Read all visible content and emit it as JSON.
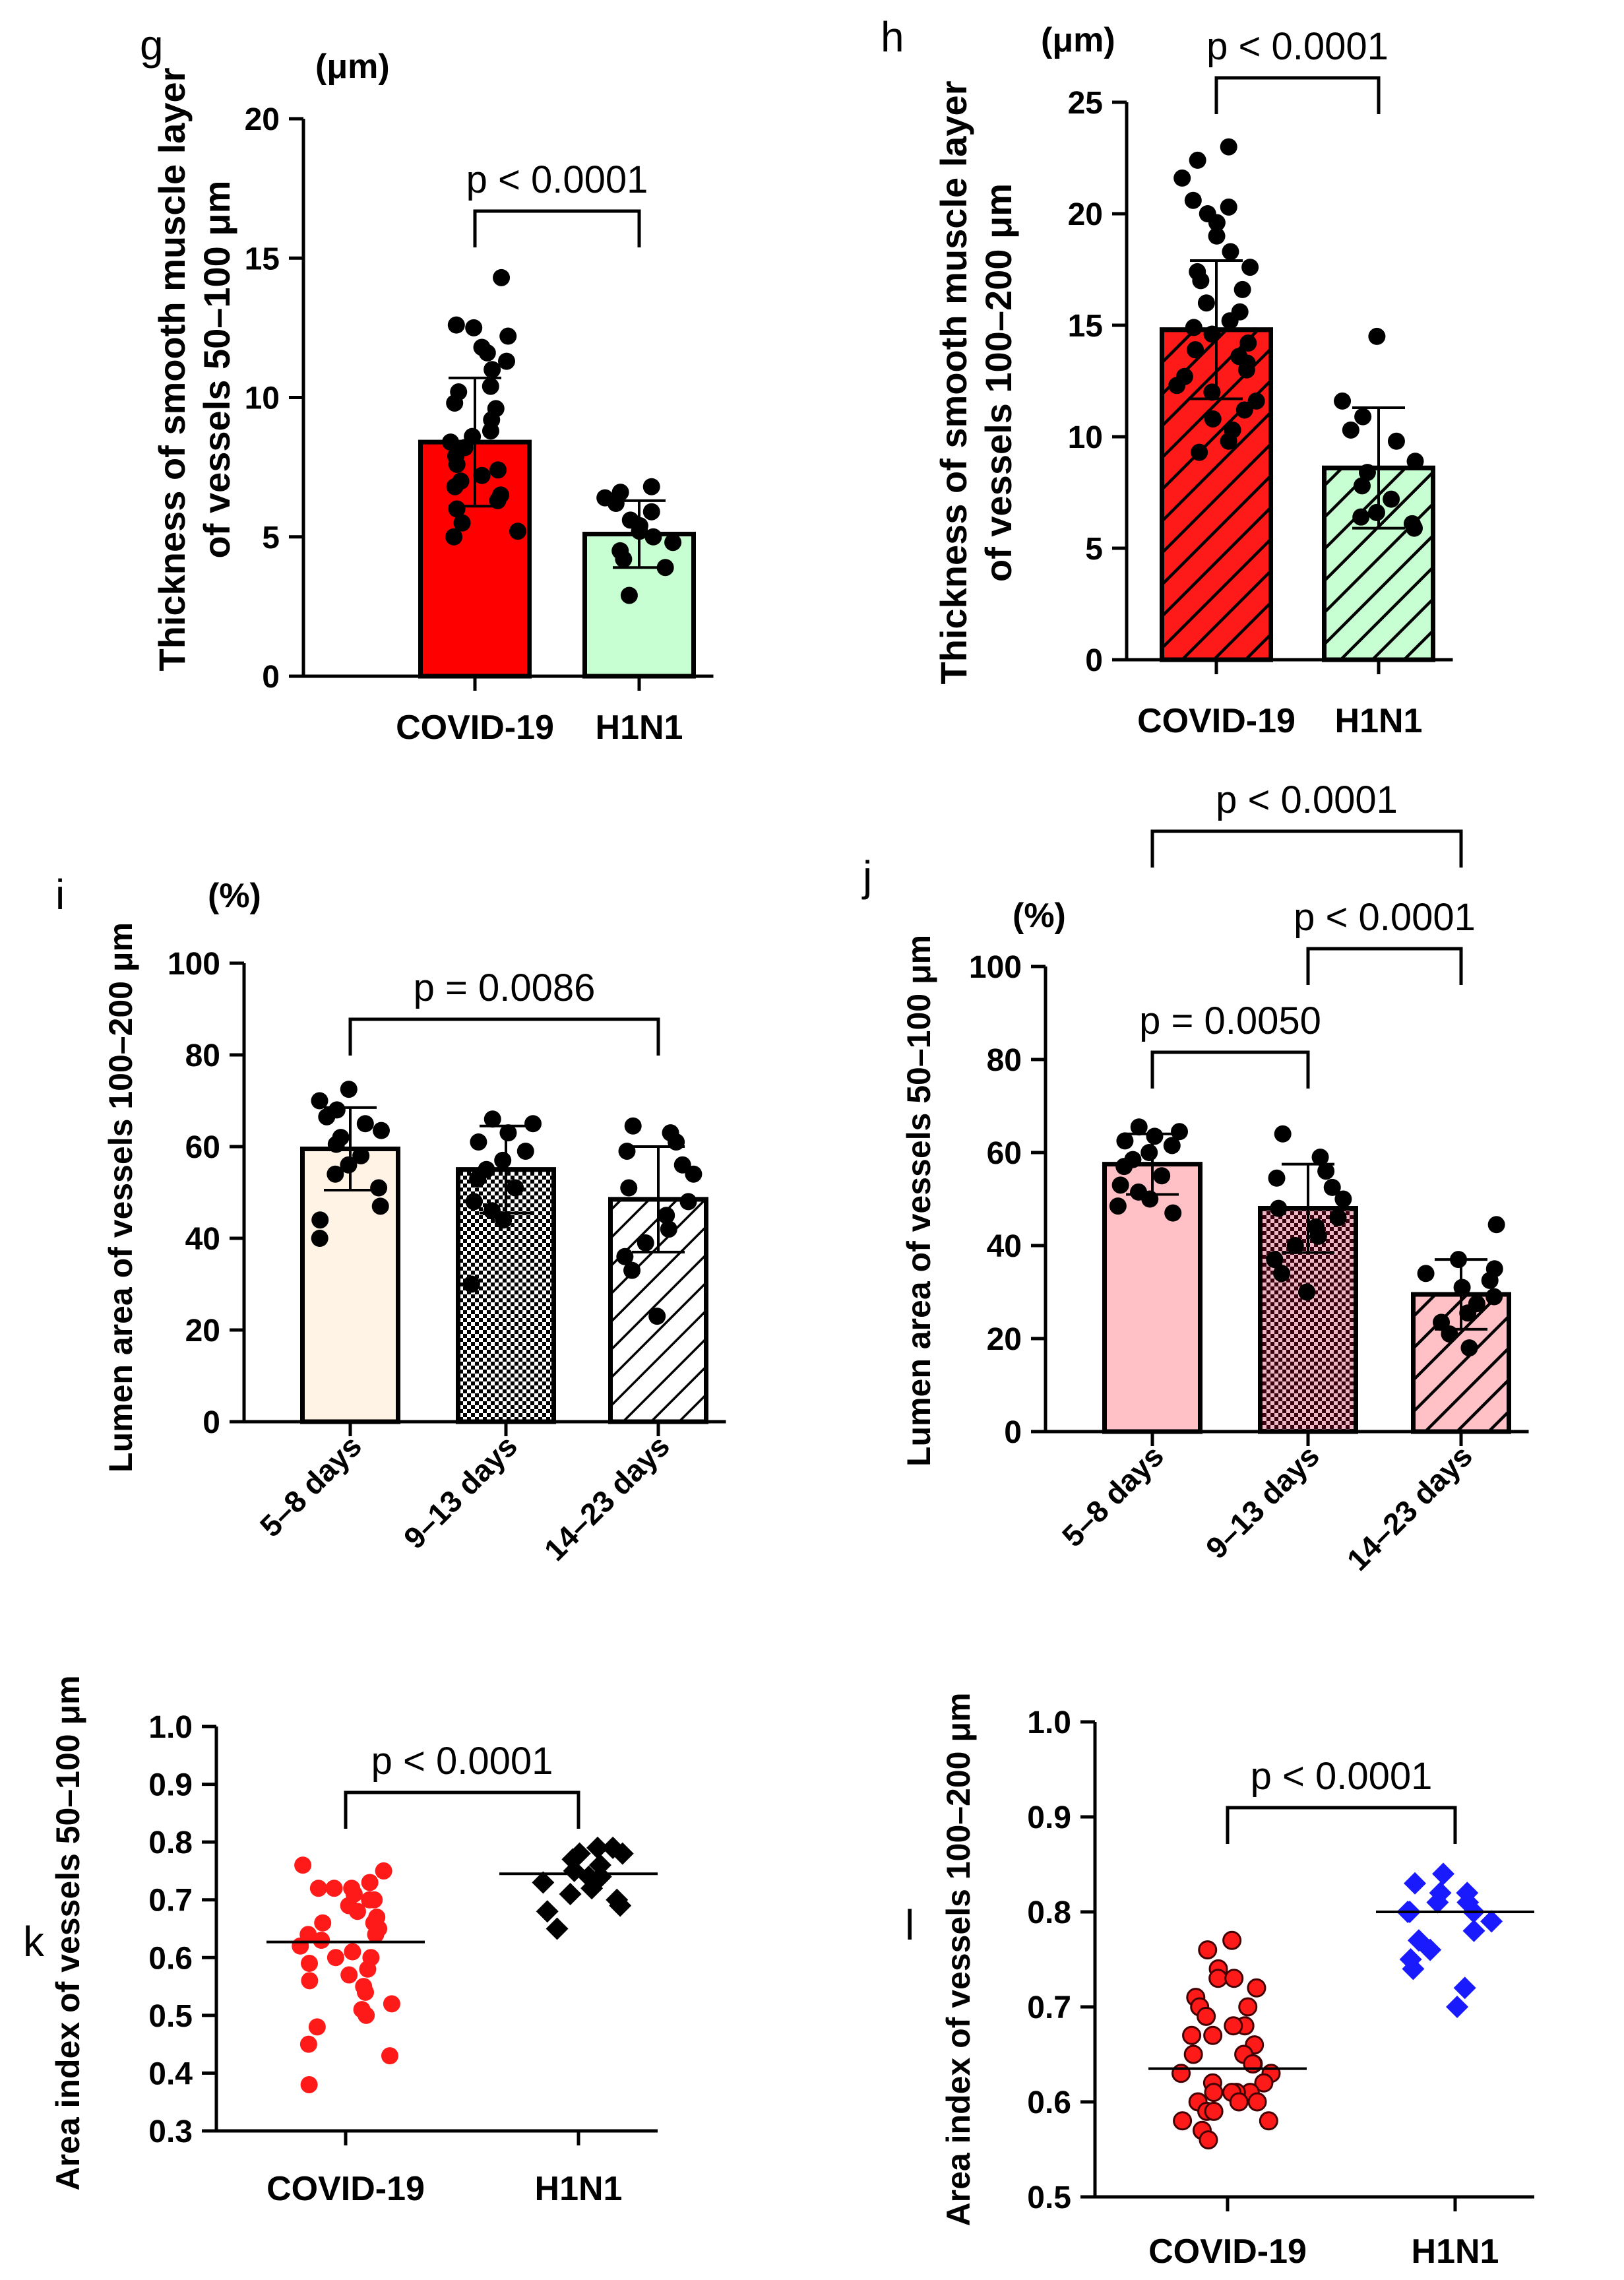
{
  "figure_description": "Multi-panel figure comparing vascular measurements in COVID-19 and H1N1",
  "chart_data": [
    {
      "id": "g",
      "panel_label": "g",
      "type": "bar",
      "ylabel_lines": [
        "Thickness of smooth muscle layer",
        "of vessels 50–100 μm"
      ],
      "unit_label": "(μm)",
      "ylim": [
        0,
        20
      ],
      "yticks": [
        0,
        5,
        10,
        15,
        20
      ],
      "yticklabels": [
        "0",
        "5",
        "10",
        "15",
        "20"
      ],
      "categories": [
        "COVID-19",
        "H1N1"
      ],
      "values": [
        8.4,
        5.1
      ],
      "sd": [
        2.3,
        1.2
      ],
      "fills": [
        "#ff0000",
        "#c8ffd2"
      ],
      "patterns": [
        "none",
        "none"
      ],
      "points": [
        [
          14.3,
          12.5,
          12.2,
          12.6,
          11.8,
          11.3,
          11.6,
          11.0,
          10.4,
          10.2,
          9.8,
          9.6,
          9.2,
          8.8,
          8.6,
          8.4,
          8.2,
          7.9,
          7.6,
          7.4,
          7.2,
          7.0,
          6.8,
          6.5,
          6.3,
          6.0,
          5.5,
          5.2,
          5.0
        ],
        [
          6.8,
          6.6,
          6.4,
          6.2,
          5.9,
          5.6,
          5.4,
          5.2,
          5.0,
          4.8,
          4.5,
          4.2,
          3.9,
          2.9
        ]
      ],
      "comparisons": [
        {
          "from": 0,
          "to": 1,
          "label": "p < 0.0001"
        }
      ]
    },
    {
      "id": "h",
      "panel_label": "h",
      "type": "bar",
      "ylabel_lines": [
        "Thickness of smooth muscle layer",
        "of vessels 100–200 μm"
      ],
      "unit_label": "(μm)",
      "ylim": [
        0,
        25
      ],
      "yticks": [
        0,
        5,
        10,
        15,
        20,
        25
      ],
      "yticklabels": [
        "0",
        "5",
        "10",
        "15",
        "20",
        "25"
      ],
      "categories": [
        "COVID-19",
        "H1N1"
      ],
      "values": [
        14.8,
        8.6
      ],
      "sd": [
        3.1,
        2.7
      ],
      "fills": [
        "#ff1a1a",
        "#c8ffd2"
      ],
      "patterns": [
        "hatch-dark",
        "hatch-dark"
      ],
      "points": [
        [
          23.0,
          22.4,
          21.6,
          20.6,
          20.3,
          20.0,
          19.6,
          19.0,
          18.3,
          17.6,
          17.4,
          17.0,
          16.6,
          16.0,
          15.6,
          15.2,
          14.9,
          14.6,
          14.2,
          13.9,
          13.6,
          13.3,
          13.0,
          12.7,
          12.3,
          12.0,
          11.6,
          11.2,
          10.8,
          10.3,
          9.8,
          9.3
        ],
        [
          14.5,
          11.6,
          10.9,
          10.3,
          9.8,
          8.9,
          8.4,
          7.8,
          7.2,
          6.6,
          6.4,
          6.1,
          5.9
        ]
      ],
      "comparisons": [
        {
          "from": 0,
          "to": 1,
          "label": "p < 0.0001"
        }
      ]
    },
    {
      "id": "i",
      "panel_label": "i",
      "type": "bar",
      "ylabel_lines": [
        "Lumen area of vessels 100–200 μm"
      ],
      "unit_label": "(%)",
      "ylim": [
        0,
        100
      ],
      "yticks": [
        0,
        20,
        40,
        60,
        80,
        100
      ],
      "yticklabels": [
        "0",
        "20",
        "40",
        "60",
        "80",
        "100"
      ],
      "categories": [
        "5–8 days",
        "9–13 days",
        "14–23 days"
      ],
      "values": [
        59.5,
        55.0,
        48.5
      ],
      "sd": [
        9.0,
        9.5,
        11.5
      ],
      "fills": [
        "#fff3e6",
        "#ffffff",
        "#ffffff"
      ],
      "patterns": [
        "none",
        "checker",
        "hatch"
      ],
      "points": [
        [
          72.5,
          70.0,
          68.0,
          66.5,
          65.0,
          63.5,
          62.0,
          60.5,
          58.0,
          56.0,
          54.0,
          51.0,
          47.0,
          44.0,
          40.0
        ],
        [
          66.0,
          65.0,
          63.0,
          61.0,
          59.0,
          57.0,
          55.0,
          53.0,
          51.0,
          48.0,
          46.0,
          44.0,
          30.0
        ],
        [
          64.5,
          63.0,
          61.0,
          59.0,
          56.0,
          54.0,
          51.0,
          48.0,
          45.0,
          42.0,
          39.0,
          36.0,
          33.0,
          23.0
        ]
      ],
      "comparisons": [
        {
          "from": 0,
          "to": 2,
          "label": "p = 0.0086"
        }
      ]
    },
    {
      "id": "j",
      "panel_label": "j",
      "type": "bar",
      "ylabel_lines": [
        "Lumen area of vessels 50–100 μm"
      ],
      "unit_label": "(%)",
      "ylim": [
        0,
        100
      ],
      "yticks": [
        0,
        20,
        40,
        60,
        80,
        100
      ],
      "yticklabels": [
        "0",
        "20",
        "40",
        "60",
        "80",
        "100"
      ],
      "categories": [
        "5–8 days",
        "9–13 days",
        "14–23 days"
      ],
      "values": [
        57.5,
        48.0,
        29.5
      ],
      "sd": [
        6.5,
        9.5,
        7.5
      ],
      "fills": [
        "#ffc0c6",
        "#ecb8c4",
        "#ffc0c6"
      ],
      "patterns": [
        "none",
        "checker-dark",
        "hatch-dark"
      ],
      "points": [
        [
          65.5,
          64.5,
          63.5,
          62.5,
          61.5,
          60.0,
          58.5,
          57.0,
          55.0,
          53.0,
          51.5,
          50.0,
          48.5,
          47.0
        ],
        [
          64.0,
          59.0,
          56.0,
          54.5,
          52.5,
          50.0,
          48.0,
          46.0,
          44.0,
          42.0,
          40.0,
          37.0,
          34.0,
          30.0
        ],
        [
          44.5,
          37.0,
          35.0,
          34.0,
          32.5,
          31.0,
          29.0,
          27.5,
          25.5,
          23.5,
          21.0,
          18.0
        ]
      ],
      "comparisons": [
        {
          "from": 0,
          "to": 1,
          "label": "p = 0.0050"
        },
        {
          "from": 1,
          "to": 2,
          "label": "p < 0.0001"
        },
        {
          "from": 0,
          "to": 2,
          "label": "p < 0.0001"
        }
      ]
    },
    {
      "id": "k",
      "panel_label": "k",
      "type": "scatter",
      "ylabel_lines": [
        "Area index of vessels 50–100 μm"
      ],
      "unit_label": "",
      "ylim": [
        0.3,
        1.0
      ],
      "yticks": [
        0.3,
        0.4,
        0.5,
        0.6,
        0.7,
        0.8,
        0.9,
        1.0
      ],
      "yticklabels": [
        "0.3",
        "0.4",
        "0.5",
        "0.6",
        "0.7",
        "0.8",
        "0.9",
        "1.0"
      ],
      "categories": [
        "COVID-19",
        "H1N1"
      ],
      "means": [
        0.627,
        0.745
      ],
      "marker_colors": [
        "#ff1a1a",
        "#000000"
      ],
      "markers": [
        "circle",
        "diamond"
      ],
      "points": [
        [
          0.76,
          0.75,
          0.73,
          0.72,
          0.72,
          0.72,
          0.71,
          0.7,
          0.7,
          0.69,
          0.68,
          0.67,
          0.66,
          0.66,
          0.65,
          0.64,
          0.64,
          0.63,
          0.62,
          0.61,
          0.6,
          0.6,
          0.59,
          0.58,
          0.57,
          0.56,
          0.55,
          0.54,
          0.52,
          0.51,
          0.5,
          0.48,
          0.45,
          0.43,
          0.38
        ],
        [
          0.79,
          0.79,
          0.78,
          0.78,
          0.77,
          0.76,
          0.75,
          0.74,
          0.74,
          0.73,
          0.72,
          0.71,
          0.7,
          0.69,
          0.68,
          0.65
        ]
      ],
      "comparisons": [
        {
          "from": 0,
          "to": 1,
          "label": "p < 0.0001"
        }
      ]
    },
    {
      "id": "l",
      "panel_label": "l",
      "type": "scatter",
      "ylabel_lines": [
        "Area index of vessels 100–200 μm"
      ],
      "unit_label": "",
      "ylim": [
        0.5,
        1.0
      ],
      "yticks": [
        0.5,
        0.6,
        0.7,
        0.8,
        0.9,
        1.0
      ],
      "yticklabels": [
        "0.5",
        "0.6",
        "0.7",
        "0.8",
        "0.9",
        "1.0"
      ],
      "categories": [
        "COVID-19",
        "H1N1"
      ],
      "means": [
        0.635,
        0.8
      ],
      "marker_colors": [
        "#ff1a1a",
        "#1a1aff"
      ],
      "markers": [
        "circle",
        "diamond"
      ],
      "points": [
        [
          0.77,
          0.76,
          0.74,
          0.73,
          0.73,
          0.72,
          0.71,
          0.7,
          0.7,
          0.69,
          0.68,
          0.68,
          0.67,
          0.67,
          0.66,
          0.65,
          0.65,
          0.64,
          0.64,
          0.63,
          0.63,
          0.62,
          0.62,
          0.61,
          0.61,
          0.61,
          0.61,
          0.6,
          0.6,
          0.6,
          0.59,
          0.59,
          0.58,
          0.58,
          0.57,
          0.56
        ],
        [
          0.84,
          0.83,
          0.82,
          0.82,
          0.81,
          0.81,
          0.8,
          0.8,
          0.8,
          0.79,
          0.78,
          0.77,
          0.76,
          0.75,
          0.74,
          0.72,
          0.7
        ]
      ],
      "comparisons": [
        {
          "from": 0,
          "to": 1,
          "label": "p < 0.0001"
        }
      ]
    }
  ]
}
